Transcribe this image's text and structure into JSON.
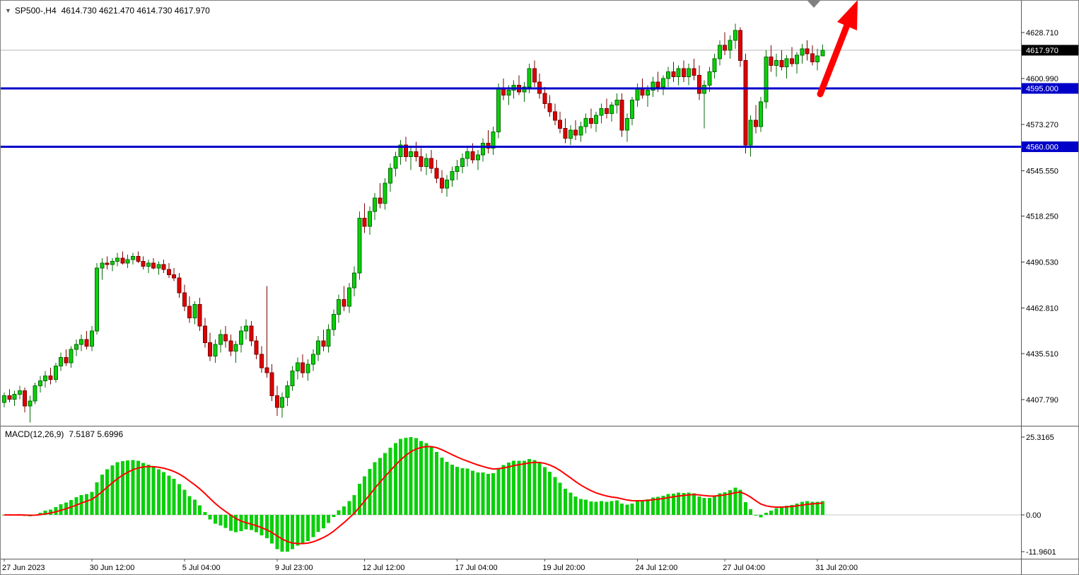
{
  "title_bar": {
    "symbol_period": "SP500-,H4",
    "ohlc_text": "4614.730 4621.470 4614.730 4617.970"
  },
  "icons": {
    "title_triangle": "▼",
    "shift_marker": "▼"
  },
  "chart_data": {
    "type": "candlestick",
    "symbol": "SP500-",
    "timeframe": "H4",
    "ohlc_current": {
      "open": 4614.73,
      "high": 4621.47,
      "low": 4614.73,
      "close": 4617.97
    },
    "price_axis": {
      "ticks": [
        "4628.710",
        "4600.990",
        "4573.270",
        "4545.550",
        "4518.250",
        "4490.530",
        "4462.810",
        "4435.510",
        "4407.790"
      ],
      "current_price_label": {
        "text": "4617.970",
        "value": 4617.97,
        "bg": "#000000",
        "fg": "#ffffff"
      }
    },
    "horizontal_lines": [
      {
        "value": 4595.0,
        "label": "4595.000",
        "color": "#0000C8"
      },
      {
        "value": 4560.0,
        "label": "4560.000",
        "color": "#0000C8"
      }
    ],
    "time_axis": [
      {
        "label": "27 Jun 2023",
        "candle_index": 0
      },
      {
        "label": "30 Jun 12:00",
        "candle_index": 17
      },
      {
        "label": "5 Jul 04:00",
        "candle_index": 35
      },
      {
        "label": "9 Jul 23:00",
        "candle_index": 53
      },
      {
        "label": "12 Jul 12:00",
        "candle_index": 70
      },
      {
        "label": "17 Jul 04:00",
        "candle_index": 88
      },
      {
        "label": "19 Jul 20:00",
        "candle_index": 105
      },
      {
        "label": "24 Jul 12:00",
        "candle_index": 123
      },
      {
        "label": "27 Jul 04:00",
        "candle_index": 140
      },
      {
        "label": "31 Jul 20:00",
        "candle_index": 158
      }
    ],
    "candle_colors": {
      "up": "#0ACF0A",
      "down": "#E00000",
      "up_border": "#046B04",
      "down_border": "#7A0000"
    },
    "candles": [
      [
        4406,
        4412,
        4403,
        4410
      ],
      [
        4410,
        4414,
        4406,
        4408
      ],
      [
        4408,
        4413,
        4404,
        4411
      ],
      [
        4411,
        4416,
        4408,
        4413
      ],
      [
        4413,
        4415,
        4400,
        4404
      ],
      [
        4404,
        4410,
        4394,
        4407
      ],
      [
        4407,
        4418,
        4405,
        4416
      ],
      [
        4416,
        4422,
        4412,
        4419
      ],
      [
        4419,
        4425,
        4415,
        4422
      ],
      [
        4422,
        4427,
        4417,
        4420
      ],
      [
        4420,
        4430,
        4418,
        4428
      ],
      [
        4428,
        4436,
        4425,
        4433
      ],
      [
        4433,
        4438,
        4428,
        4430
      ],
      [
        4430,
        4440,
        4427,
        4438
      ],
      [
        4438,
        4444,
        4434,
        4441
      ],
      [
        4441,
        4447,
        4437,
        4444
      ],
      [
        4444,
        4449,
        4438,
        4440
      ],
      [
        4440,
        4452,
        4437,
        4449
      ],
      [
        4449,
        4490,
        4447,
        4487
      ],
      [
        4487,
        4493,
        4480,
        4490
      ],
      [
        4490,
        4494,
        4486,
        4489
      ],
      [
        4489,
        4493,
        4485,
        4491
      ],
      [
        4491,
        4496,
        4488,
        4493
      ],
      [
        4493,
        4497,
        4489,
        4490
      ],
      [
        4490,
        4495,
        4487,
        4492
      ],
      [
        4492,
        4496,
        4489,
        4494
      ],
      [
        4494,
        4497,
        4490,
        4491
      ],
      [
        4491,
        4494,
        4486,
        4488
      ],
      [
        4488,
        4492,
        4484,
        4490
      ],
      [
        4490,
        4493,
        4486,
        4487
      ],
      [
        4487,
        4491,
        4483,
        4489
      ],
      [
        4489,
        4492,
        4484,
        4486
      ],
      [
        4486,
        4490,
        4481,
        4483
      ],
      [
        4483,
        4487,
        4479,
        4481
      ],
      [
        4481,
        4484,
        4469,
        4472
      ],
      [
        4472,
        4477,
        4461,
        4464
      ],
      [
        4464,
        4470,
        4454,
        4457
      ],
      [
        4457,
        4467,
        4453,
        4465
      ],
      [
        4465,
        4469,
        4449,
        4452
      ],
      [
        4452,
        4457,
        4439,
        4442
      ],
      [
        4442,
        4448,
        4431,
        4434
      ],
      [
        4434,
        4444,
        4430,
        4441
      ],
      [
        4441,
        4450,
        4436,
        4447
      ],
      [
        4447,
        4452,
        4439,
        4443
      ],
      [
        4443,
        4447,
        4434,
        4437
      ],
      [
        4437,
        4443,
        4430,
        4441
      ],
      [
        4441,
        4452,
        4436,
        4449
      ],
      [
        4449,
        4456,
        4444,
        4452
      ],
      [
        4452,
        4455,
        4440,
        4443
      ],
      [
        4443,
        4446,
        4432,
        4435
      ],
      [
        4435,
        4440,
        4424,
        4427
      ],
      [
        4427,
        4476,
        4421,
        4424
      ],
      [
        4424,
        4429,
        4407,
        4410
      ],
      [
        4410,
        4416,
        4398,
        4403
      ],
      [
        4403,
        4412,
        4397,
        4409
      ],
      [
        4409,
        4419,
        4404,
        4416
      ],
      [
        4416,
        4428,
        4413,
        4425
      ],
      [
        4425,
        4433,
        4420,
        4430
      ],
      [
        4430,
        4435,
        4421,
        4424
      ],
      [
        4424,
        4432,
        4419,
        4429
      ],
      [
        4429,
        4438,
        4425,
        4435
      ],
      [
        4435,
        4446,
        4431,
        4443
      ],
      [
        4443,
        4450,
        4437,
        4440
      ],
      [
        4440,
        4453,
        4436,
        4450
      ],
      [
        4450,
        4462,
        4446,
        4459
      ],
      [
        4459,
        4471,
        4454,
        4468
      ],
      [
        4468,
        4476,
        4461,
        4464
      ],
      [
        4464,
        4478,
        4460,
        4475
      ],
      [
        4475,
        4488,
        4470,
        4484
      ],
      [
        4484,
        4521,
        4480,
        4517
      ],
      [
        4517,
        4526,
        4508,
        4512
      ],
      [
        4512,
        4524,
        4507,
        4521
      ],
      [
        4521,
        4532,
        4516,
        4529
      ],
      [
        4529,
        4538,
        4523,
        4526
      ],
      [
        4526,
        4541,
        4522,
        4538
      ],
      [
        4538,
        4550,
        4533,
        4547
      ],
      [
        4547,
        4557,
        4542,
        4554
      ],
      [
        4554,
        4564,
        4549,
        4561
      ],
      [
        4561,
        4566,
        4551,
        4554
      ],
      [
        4554,
        4560,
        4546,
        4557
      ],
      [
        4557,
        4563,
        4551,
        4554
      ],
      [
        4554,
        4559,
        4545,
        4548
      ],
      [
        4548,
        4556,
        4543,
        4553
      ],
      [
        4553,
        4558,
        4544,
        4547
      ],
      [
        4547,
        4552,
        4538,
        4541
      ],
      [
        4541,
        4546,
        4532,
        4535
      ],
      [
        4535,
        4543,
        4530,
        4540
      ],
      [
        4540,
        4548,
        4536,
        4545
      ],
      [
        4545,
        4552,
        4540,
        4548
      ],
      [
        4548,
        4556,
        4544,
        4553
      ],
      [
        4553,
        4560,
        4548,
        4557
      ],
      [
        4557,
        4562,
        4550,
        4552
      ],
      [
        4552,
        4558,
        4546,
        4555
      ],
      [
        4555,
        4565,
        4551,
        4562
      ],
      [
        4562,
        4570,
        4556,
        4559
      ],
      [
        4559,
        4572,
        4555,
        4569
      ],
      [
        4569,
        4598,
        4565,
        4595
      ],
      [
        4595,
        4601,
        4588,
        4591
      ],
      [
        4591,
        4597,
        4585,
        4594
      ],
      [
        4594,
        4600,
        4589,
        4597
      ],
      [
        4597,
        4603,
        4591,
        4593
      ],
      [
        4593,
        4599,
        4587,
        4596
      ],
      [
        4596,
        4610,
        4592,
        4607
      ],
      [
        4607,
        4612,
        4596,
        4599
      ],
      [
        4599,
        4604,
        4589,
        4592
      ],
      [
        4592,
        4596,
        4583,
        4586
      ],
      [
        4586,
        4591,
        4578,
        4581
      ],
      [
        4581,
        4586,
        4573,
        4576
      ],
      [
        4576,
        4581,
        4568,
        4571
      ],
      [
        4571,
        4577,
        4562,
        4565
      ],
      [
        4565,
        4573,
        4561,
        4570
      ],
      [
        4570,
        4576,
        4564,
        4567
      ],
      [
        4567,
        4575,
        4563,
        4572
      ],
      [
        4572,
        4580,
        4568,
        4577
      ],
      [
        4577,
        4583,
        4571,
        4574
      ],
      [
        4574,
        4581,
        4569,
        4579
      ],
      [
        4579,
        4586,
        4574,
        4583
      ],
      [
        4583,
        4589,
        4577,
        4580
      ],
      [
        4580,
        4587,
        4575,
        4585
      ],
      [
        4585,
        4592,
        4580,
        4588
      ],
      [
        4588,
        4592,
        4566,
        4570
      ],
      [
        4570,
        4580,
        4563,
        4577
      ],
      [
        4577,
        4590,
        4573,
        4588
      ],
      [
        4588,
        4598,
        4584,
        4595
      ],
      [
        4595,
        4601,
        4589,
        4591
      ],
      [
        4591,
        4597,
        4584,
        4594
      ],
      [
        4594,
        4602,
        4590,
        4599
      ],
      [
        4599,
        4605,
        4593,
        4596
      ],
      [
        4596,
        4603,
        4591,
        4601
      ],
      [
        4601,
        4608,
        4596,
        4605
      ],
      [
        4605,
        4611,
        4599,
        4602
      ],
      [
        4602,
        4609,
        4597,
        4607
      ],
      [
        4607,
        4612,
        4599,
        4602
      ],
      [
        4602,
        4610,
        4597,
        4607
      ],
      [
        4607,
        4613,
        4600,
        4603
      ],
      [
        4603,
        4609,
        4588,
        4592
      ],
      [
        4592,
        4600,
        4571,
        4597
      ],
      [
        4597,
        4608,
        4593,
        4605
      ],
      [
        4605,
        4616,
        4601,
        4613
      ],
      [
        4613,
        4624,
        4609,
        4621
      ],
      [
        4621,
        4629,
        4615,
        4618
      ],
      [
        4618,
        4627,
        4613,
        4624
      ],
      [
        4624,
        4634,
        4619,
        4630
      ],
      [
        4630,
        4632,
        4608,
        4612
      ],
      [
        4612,
        4616,
        4556,
        4561
      ],
      [
        4561,
        4579,
        4554,
        4576
      ],
      [
        4576,
        4585,
        4568,
        4572
      ],
      [
        4572,
        4590,
        4569,
        4587
      ],
      [
        4587,
        4618,
        4583,
        4614
      ],
      [
        4614,
        4621,
        4605,
        4609
      ],
      [
        4609,
        4616,
        4602,
        4612
      ],
      [
        4612,
        4618,
        4606,
        4608
      ],
      [
        4608,
        4615,
        4601,
        4613
      ],
      [
        4613,
        4620,
        4608,
        4610
      ],
      [
        4610,
        4617,
        4604,
        4615
      ],
      [
        4615,
        4622,
        4610,
        4619
      ],
      [
        4619,
        4624,
        4612,
        4616
      ],
      [
        4616,
        4621,
        4609,
        4611
      ],
      [
        4611,
        4619,
        4606,
        4614.73
      ],
      [
        4614.73,
        4621.47,
        4614.73,
        4617.97
      ]
    ],
    "macd": {
      "label": "MACD(12,26,9)",
      "values_text": "7.5187 5.6996",
      "fast": 12,
      "slow": 26,
      "signal_period": 9,
      "axis_ticks": [
        "25.3165",
        "0.00",
        "-11.9601"
      ],
      "axis_values": [
        25.3165,
        0,
        -11.9601
      ],
      "histogram_color": "#0ACF0A",
      "signal_color": "#FF0000"
    },
    "annotations": {
      "arrow_color": "#FF0000",
      "arrow_direction": "up"
    }
  }
}
